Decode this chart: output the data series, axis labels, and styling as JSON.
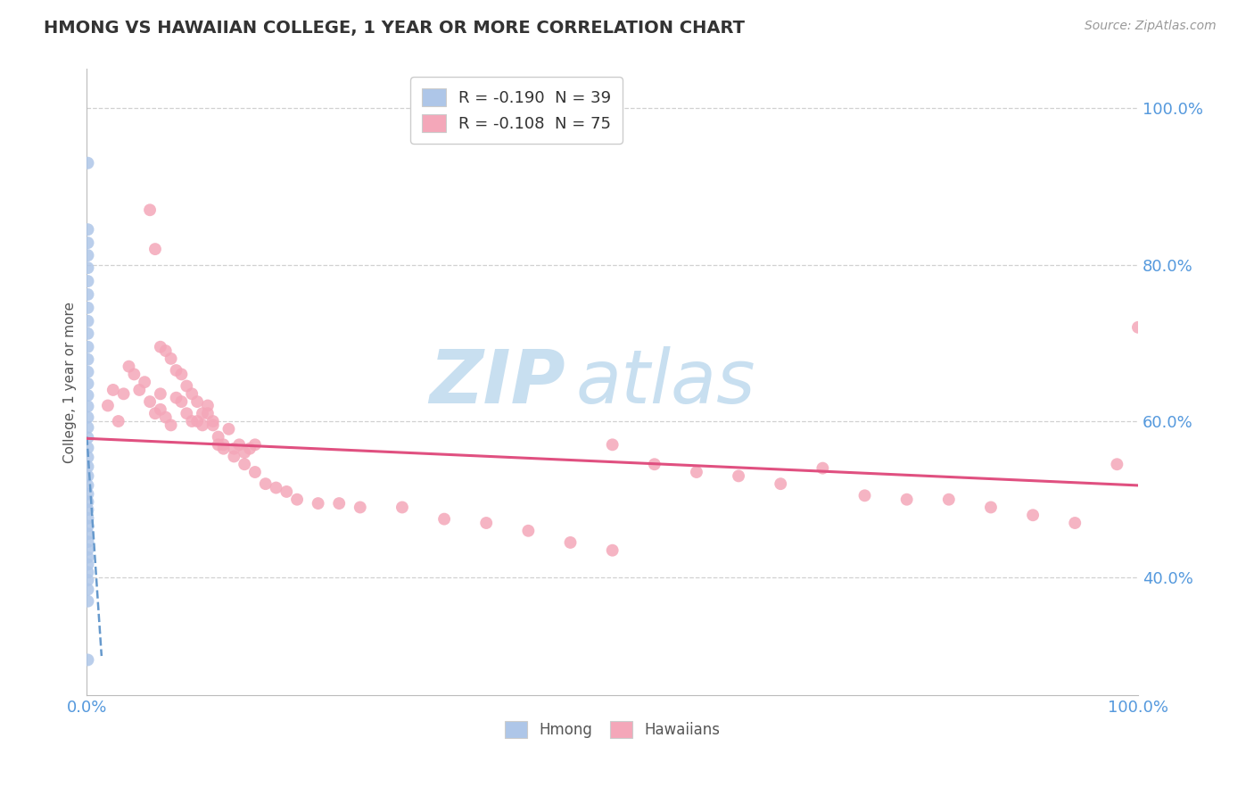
{
  "title": "HMONG VS HAWAIIAN COLLEGE, 1 YEAR OR MORE CORRELATION CHART",
  "source": "Source: ZipAtlas.com",
  "ylabel": "College, 1 year or more",
  "legend_entries": [
    {
      "label": "R = -0.190  N = 39",
      "color": "#aec6e8"
    },
    {
      "label": "R = -0.108  N = 75",
      "color": "#f4a7b9"
    }
  ],
  "legend_labels": [
    "Hmong",
    "Hawaiians"
  ],
  "hmong_x": [
    0.001,
    0.001,
    0.001,
    0.001,
    0.001,
    0.001,
    0.001,
    0.001,
    0.001,
    0.001,
    0.001,
    0.001,
    0.001,
    0.001,
    0.001,
    0.001,
    0.001,
    0.001,
    0.001,
    0.001,
    0.001,
    0.001,
    0.001,
    0.001,
    0.001,
    0.001,
    0.001,
    0.001,
    0.001,
    0.001,
    0.001,
    0.001,
    0.001,
    0.001,
    0.001,
    0.001,
    0.001,
    0.001,
    0.001
  ],
  "hmong_y": [
    0.93,
    0.845,
    0.828,
    0.812,
    0.796,
    0.779,
    0.762,
    0.745,
    0.728,
    0.712,
    0.695,
    0.679,
    0.663,
    0.648,
    0.633,
    0.619,
    0.605,
    0.592,
    0.579,
    0.566,
    0.554,
    0.542,
    0.53,
    0.518,
    0.507,
    0.497,
    0.487,
    0.476,
    0.466,
    0.456,
    0.446,
    0.436,
    0.426,
    0.417,
    0.407,
    0.397,
    0.385,
    0.37,
    0.295
  ],
  "hawaiians_x": [
    0.02,
    0.025,
    0.03,
    0.035,
    0.04,
    0.045,
    0.05,
    0.055,
    0.06,
    0.065,
    0.07,
    0.07,
    0.075,
    0.08,
    0.085,
    0.09,
    0.095,
    0.1,
    0.105,
    0.11,
    0.115,
    0.12,
    0.125,
    0.13,
    0.135,
    0.14,
    0.145,
    0.15,
    0.155,
    0.16,
    0.06,
    0.065,
    0.07,
    0.075,
    0.08,
    0.085,
    0.09,
    0.095,
    0.1,
    0.105,
    0.11,
    0.115,
    0.12,
    0.125,
    0.13,
    0.14,
    0.15,
    0.16,
    0.17,
    0.18,
    0.19,
    0.2,
    0.22,
    0.24,
    0.26,
    0.3,
    0.34,
    0.38,
    0.42,
    0.46,
    0.5,
    0.5,
    0.54,
    0.58,
    0.62,
    0.66,
    0.7,
    0.74,
    0.78,
    0.82,
    0.86,
    0.9,
    0.94,
    0.98,
    1.0
  ],
  "hawaiians_y": [
    0.62,
    0.64,
    0.6,
    0.635,
    0.67,
    0.66,
    0.64,
    0.65,
    0.625,
    0.61,
    0.635,
    0.615,
    0.605,
    0.595,
    0.63,
    0.625,
    0.61,
    0.6,
    0.6,
    0.595,
    0.62,
    0.6,
    0.58,
    0.57,
    0.59,
    0.565,
    0.57,
    0.56,
    0.565,
    0.57,
    0.87,
    0.82,
    0.695,
    0.69,
    0.68,
    0.665,
    0.66,
    0.645,
    0.635,
    0.625,
    0.61,
    0.61,
    0.595,
    0.57,
    0.565,
    0.555,
    0.545,
    0.535,
    0.52,
    0.515,
    0.51,
    0.5,
    0.495,
    0.495,
    0.49,
    0.49,
    0.475,
    0.47,
    0.46,
    0.445,
    0.57,
    0.435,
    0.545,
    0.535,
    0.53,
    0.52,
    0.54,
    0.505,
    0.5,
    0.5,
    0.49,
    0.48,
    0.47,
    0.545,
    0.72
  ],
  "hmong_trend_x": [
    0.0,
    0.014
  ],
  "hmong_trend_y": [
    0.58,
    0.3
  ],
  "hawaiians_trend_x": [
    0.0,
    1.0
  ],
  "hawaiians_trend_y": [
    0.578,
    0.518
  ],
  "xlim": [
    0.0,
    1.0
  ],
  "ylim": [
    0.25,
    1.05
  ],
  "yticks": [
    0.4,
    0.6,
    0.8,
    1.0
  ],
  "ytick_labels": [
    "40.0%",
    "60.0%",
    "80.0%",
    "100.0%"
  ],
  "xtick_labels": [
    "0.0%",
    "100.0%"
  ],
  "background_color": "#ffffff",
  "grid_color": "#cccccc",
  "hmong_color": "#aec6e8",
  "hawaiians_color": "#f4a7b9",
  "hmong_trend_color": "#6699cc",
  "hawaiians_trend_color": "#e05080",
  "title_color": "#333333",
  "axis_tick_color": "#5599dd",
  "watermark_zip_color": "#c8dff0",
  "watermark_atlas_color": "#c8dff0"
}
